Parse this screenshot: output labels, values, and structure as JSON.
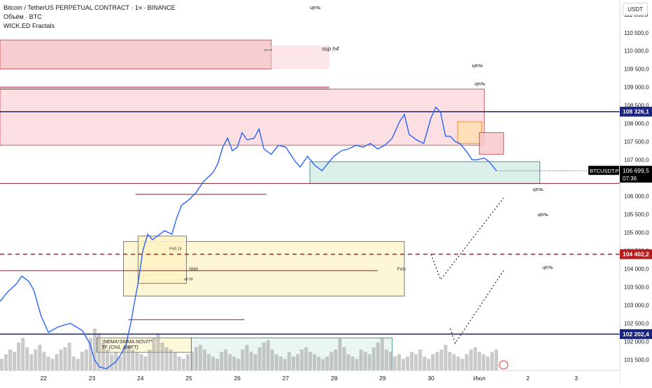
{
  "legend": {
    "title": "Bitcoin / TetherUS PERPETUAL CONTRACT · 1ч · BINANCE",
    "volume": "Объём · BTC",
    "indicator": "WICK.ED Fractals"
  },
  "currency": "USDT",
  "chart_data": {
    "type": "line",
    "symbol": "BTCUSDT.P",
    "timeframe": "1ч",
    "y_ticks": [
      "111 000,0",
      "110 500,0",
      "110 000,0",
      "109 500,0",
      "109 000,0",
      "108 500,0",
      "108 000,0",
      "107 500,0",
      "107 000,0",
      "106 500,0",
      "106 000,0",
      "105 500,0",
      "105 000,0",
      "104 500,0",
      "104 000,0",
      "103 500,0",
      "103 000,0",
      "102 500,0",
      "102 000,0",
      "101 500,0"
    ],
    "ylim": [
      101200,
      111400
    ],
    "x_ticks": [
      "22",
      "23",
      "24",
      "25",
      "26",
      "27",
      "28",
      "29",
      "30",
      "Июл",
      "2",
      "3"
    ],
    "x_tick_positions": [
      22,
      23,
      24,
      25,
      26,
      27,
      28,
      29,
      30,
      31,
      32,
      33
    ],
    "xlim": [
      21.1,
      33.9
    ],
    "price_series": [
      [
        21.1,
        103100
      ],
      [
        21.25,
        103350
      ],
      [
        21.45,
        103600
      ],
      [
        21.55,
        103800
      ],
      [
        21.7,
        103650
      ],
      [
        21.8,
        103400
      ],
      [
        21.95,
        102700
      ],
      [
        22.1,
        102250
      ],
      [
        22.3,
        102400
      ],
      [
        22.55,
        102500
      ],
      [
        22.8,
        102300
      ],
      [
        22.95,
        101950
      ],
      [
        23.05,
        101500
      ],
      [
        23.15,
        101300
      ],
      [
        23.3,
        101250
      ],
      [
        23.5,
        101450
      ],
      [
        23.6,
        101650
      ],
      [
        23.7,
        101900
      ],
      [
        23.75,
        102200
      ],
      [
        23.8,
        102500
      ],
      [
        23.88,
        103100
      ],
      [
        23.95,
        103600
      ],
      [
        24.05,
        104500
      ],
      [
        24.15,
        104950
      ],
      [
        24.25,
        104800
      ],
      [
        24.35,
        104900
      ],
      [
        24.5,
        105050
      ],
      [
        24.65,
        104950
      ],
      [
        24.75,
        105400
      ],
      [
        24.85,
        105750
      ],
      [
        25.0,
        105900
      ],
      [
        25.15,
        106100
      ],
      [
        25.3,
        106400
      ],
      [
        25.5,
        106650
      ],
      [
        25.6,
        106900
      ],
      [
        25.7,
        107350
      ],
      [
        25.8,
        107600
      ],
      [
        25.9,
        107250
      ],
      [
        26.0,
        107350
      ],
      [
        26.1,
        107750
      ],
      [
        26.2,
        107550
      ],
      [
        26.35,
        107600
      ],
      [
        26.45,
        107850
      ],
      [
        26.55,
        107300
      ],
      [
        26.7,
        107150
      ],
      [
        26.85,
        107400
      ],
      [
        27.0,
        107350
      ],
      [
        27.1,
        107150
      ],
      [
        27.2,
        106950
      ],
      [
        27.3,
        106800
      ],
      [
        27.45,
        107100
      ],
      [
        27.6,
        106850
      ],
      [
        27.75,
        106700
      ],
      [
        27.9,
        106950
      ],
      [
        28.0,
        107100
      ],
      [
        28.15,
        107250
      ],
      [
        28.3,
        107300
      ],
      [
        28.45,
        107400
      ],
      [
        28.6,
        107350
      ],
      [
        28.75,
        107450
      ],
      [
        28.9,
        107300
      ],
      [
        29.05,
        107400
      ],
      [
        29.2,
        107600
      ],
      [
        29.35,
        108050
      ],
      [
        29.45,
        108250
      ],
      [
        29.55,
        107700
      ],
      [
        29.7,
        107550
      ],
      [
        29.85,
        107450
      ],
      [
        30.0,
        108150
      ],
      [
        30.1,
        108450
      ],
      [
        30.2,
        108300
      ],
      [
        30.3,
        107650
      ],
      [
        30.4,
        107650
      ],
      [
        30.5,
        107500
      ],
      [
        30.6,
        107450
      ],
      [
        30.75,
        107200
      ],
      [
        30.85,
        107000
      ],
      [
        30.95,
        107000
      ],
      [
        31.1,
        107050
      ],
      [
        31.2,
        106950
      ],
      [
        31.35,
        106700
      ]
    ],
    "last_price": "106 699,5",
    "last_label": "BTCUSDT.P",
    "countdown": "07:36",
    "horizontal_levels": [
      {
        "price": 108326.1,
        "label": "108 326,1",
        "color": "#1a237e"
      },
      {
        "price": 104402.2,
        "label": "104 402,2",
        "color": "#b71c1c",
        "dashed": true
      },
      {
        "price": 102202.4,
        "label": "102 202,4",
        "color": "#1a237e"
      }
    ],
    "zone_labels": [
      "sup h4",
      "цель",
      "цель",
      "цель",
      "цель",
      "цель",
      "цель",
      "SMS",
      "FVG",
      "об 30",
      "FVG 15",
      "*NEMA*SMMA NOVIT*",
      "TF (CH1, 5HIFT)",
      "sup.n4"
    ],
    "projection_paths": [
      [
        [
          30.0,
          104400
        ],
        [
          30.2,
          103700
        ],
        [
          31.5,
          105950
        ]
      ],
      [
        [
          30.4,
          102350
        ],
        [
          30.5,
          101950
        ],
        [
          31.5,
          103950
        ]
      ]
    ],
    "volumes": [
      5,
      7,
      9,
      8,
      12,
      14,
      10,
      7,
      9,
      11,
      8,
      6,
      5,
      7,
      9,
      10,
      12,
      6,
      5,
      8,
      9,
      14,
      18,
      16,
      12,
      9,
      7,
      8,
      6,
      10,
      11,
      9,
      8,
      7,
      6,
      9,
      14,
      16,
      12,
      10,
      9,
      8,
      6,
      5,
      7,
      8,
      10,
      11,
      9,
      7,
      6,
      5,
      8,
      9,
      7,
      6,
      5,
      9,
      11,
      8,
      7,
      10,
      12,
      13,
      9,
      7,
      6,
      5,
      8,
      6,
      7,
      9,
      10,
      8,
      7,
      6,
      5,
      6,
      8,
      9,
      14,
      10,
      7,
      6,
      5,
      9,
      8,
      7,
      10,
      12,
      14,
      9,
      8,
      6,
      7,
      5,
      6,
      8,
      7,
      9,
      6,
      5,
      7,
      8,
      9,
      11,
      8,
      7,
      6,
      5,
      7,
      9,
      10,
      8,
      7,
      6,
      8,
      9
    ]
  }
}
